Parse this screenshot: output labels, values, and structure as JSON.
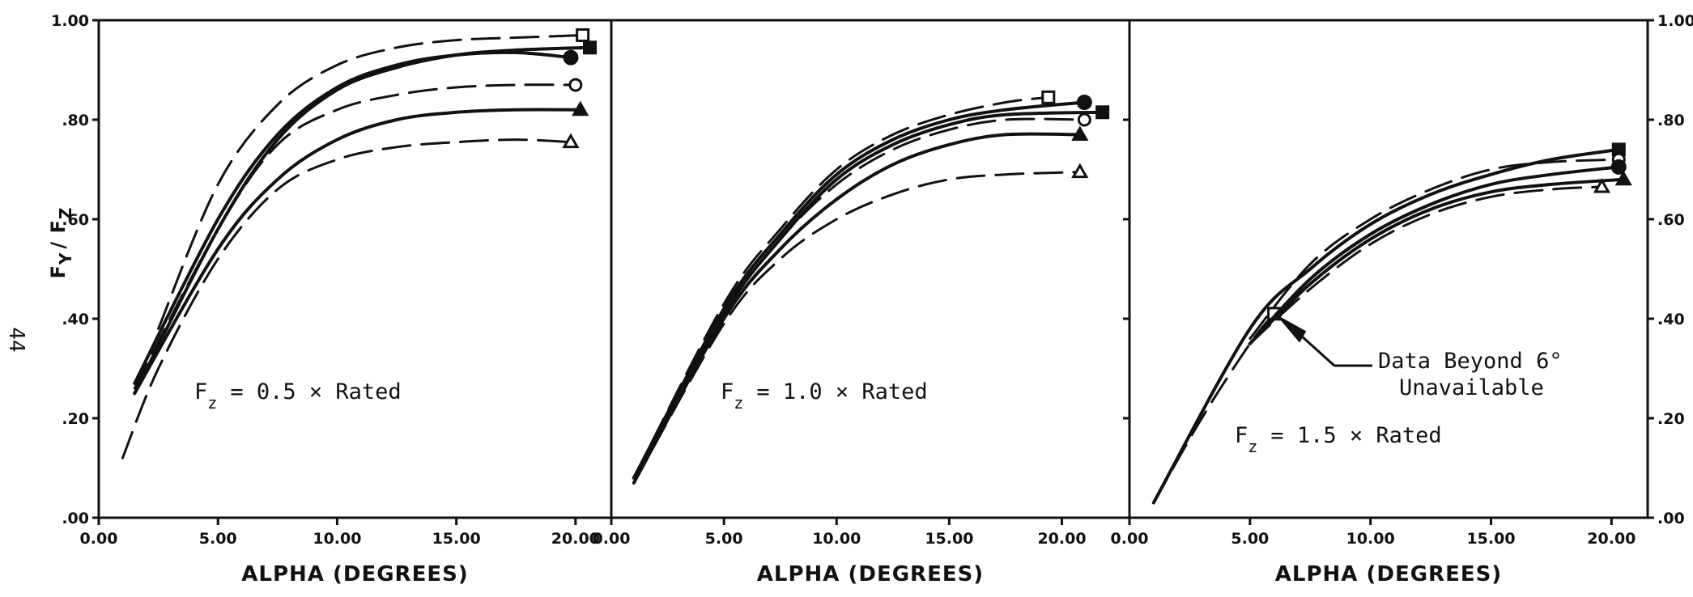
{
  "page_number": "44",
  "y_axis_title": "F",
  "y_axis_title_sub_y": "Y",
  "y_axis_title_sep": "/ F",
  "y_axis_title_sub_z": "Z",
  "chart_data": [
    {
      "type": "line",
      "panel_label": {
        "main": "F",
        "sub": "z",
        "rest": "= 0.5 × Rated"
      },
      "xlabel": "ALPHA (DEGREES)",
      "x_tick_labels": [
        "0.00",
        "5.00",
        "10.00",
        "15.00",
        "20.00"
      ],
      "y_tick_labels": [
        ".00",
        ".20",
        ".40",
        ".60",
        ".80",
        "1.00"
      ],
      "xlim": [
        0,
        21.5
      ],
      "ylim": [
        0,
        1.0
      ],
      "series": [
        {
          "marker": "square-open",
          "dashed": true,
          "x": [
            2.5,
            5,
            7.5,
            10,
            12.5,
            15,
            17.5,
            20.3
          ],
          "y": [
            0.38,
            0.67,
            0.83,
            0.91,
            0.945,
            0.96,
            0.965,
            0.97
          ]
        },
        {
          "marker": "square-filled",
          "dashed": false,
          "x": [
            1.5,
            5,
            7.5,
            10,
            12.5,
            15,
            17.5,
            20.6
          ],
          "y": [
            0.25,
            0.58,
            0.76,
            0.86,
            0.905,
            0.93,
            0.94,
            0.945
          ]
        },
        {
          "marker": "circle-filled",
          "dashed": false,
          "x": [
            1.5,
            5,
            7.5,
            10,
            12.5,
            15,
            17.5,
            19.8
          ],
          "y": [
            0.27,
            0.6,
            0.77,
            0.865,
            0.91,
            0.93,
            0.935,
            0.925
          ]
        },
        {
          "marker": "circle-open",
          "dashed": true,
          "x": [
            1.5,
            5,
            7.5,
            10,
            12.5,
            15,
            17.5,
            20.0
          ],
          "y": [
            0.26,
            0.58,
            0.75,
            0.82,
            0.85,
            0.865,
            0.87,
            0.87
          ]
        },
        {
          "marker": "triangle-filled",
          "dashed": false,
          "x": [
            1.5,
            5,
            7.5,
            10,
            12.5,
            15,
            17.5,
            20.2
          ],
          "y": [
            0.25,
            0.54,
            0.68,
            0.76,
            0.8,
            0.815,
            0.82,
            0.82
          ]
        },
        {
          "marker": "triangle-open",
          "dashed": true,
          "x": [
            1.0,
            2.5,
            5,
            7.5,
            10,
            12.5,
            15,
            17.5,
            19.8
          ],
          "y": [
            0.12,
            0.3,
            0.52,
            0.66,
            0.72,
            0.745,
            0.755,
            0.76,
            0.755
          ]
        }
      ]
    },
    {
      "type": "line",
      "panel_label": {
        "main": "F",
        "sub": "z",
        "rest": "= 1.0 × Rated"
      },
      "xlabel": "ALPHA (DEGREES)",
      "x_tick_labels": [
        "0.00",
        "5.00",
        "10.00",
        "15.00",
        "20.00"
      ],
      "y_tick_labels": [],
      "xlim": [
        0,
        23
      ],
      "ylim": [
        0,
        1.0
      ],
      "series": [
        {
          "marker": "square-open",
          "dashed": true,
          "x": [
            1.0,
            5,
            7.5,
            10,
            12.5,
            15,
            17.5,
            19.4
          ],
          "y": [
            0.08,
            0.43,
            0.58,
            0.7,
            0.77,
            0.81,
            0.835,
            0.845
          ]
        },
        {
          "marker": "circle-filled",
          "dashed": false,
          "x": [
            1.0,
            5,
            7.5,
            10,
            12.5,
            15,
            17.5,
            21.0
          ],
          "y": [
            0.08,
            0.42,
            0.57,
            0.69,
            0.76,
            0.8,
            0.82,
            0.835
          ]
        },
        {
          "marker": "square-filled",
          "dashed": false,
          "x": [
            1.0,
            5,
            7.5,
            10,
            12.5,
            15,
            17.5,
            21.8
          ],
          "y": [
            0.08,
            0.41,
            0.56,
            0.68,
            0.75,
            0.79,
            0.81,
            0.815
          ]
        },
        {
          "marker": "circle-open",
          "dashed": true,
          "x": [
            1.0,
            5,
            7.5,
            10,
            12.5,
            15,
            17.5,
            21.0
          ],
          "y": [
            0.08,
            0.41,
            0.56,
            0.67,
            0.74,
            0.78,
            0.8,
            0.8
          ]
        },
        {
          "marker": "triangle-filled",
          "dashed": false,
          "x": [
            1.0,
            5,
            7.5,
            10,
            12.5,
            15,
            17.5,
            20.8
          ],
          "y": [
            0.07,
            0.4,
            0.54,
            0.64,
            0.71,
            0.75,
            0.77,
            0.77
          ]
        },
        {
          "marker": "triangle-open",
          "dashed": true,
          "x": [
            1.0,
            5,
            7.5,
            10,
            12.5,
            15,
            17.5,
            20.8
          ],
          "y": [
            0.07,
            0.39,
            0.52,
            0.6,
            0.65,
            0.68,
            0.69,
            0.695
          ]
        }
      ]
    },
    {
      "type": "line",
      "panel_label": {
        "main": "F",
        "sub": "z",
        "rest": "= 1.5 × Rated"
      },
      "annotation": {
        "line1": "Data Beyond 6°",
        "line2": "Unavailable"
      },
      "xlabel": "ALPHA (DEGREES)",
      "x_tick_labels": [
        "0.00",
        "5.00",
        "10.00",
        "15.00",
        "20.00"
      ],
      "y_tick_labels": [
        ".00",
        ".20",
        ".40",
        ".60",
        ".80",
        "1.00"
      ],
      "xlim": [
        0,
        21.5
      ],
      "ylim": [
        0,
        1.0
      ],
      "series": [
        {
          "marker": "square-open",
          "dashed": true,
          "x": [
            1.0,
            3,
            5,
            6.0
          ],
          "y": [
            0.03,
            0.2,
            0.35,
            0.41
          ]
        },
        {
          "marker": "square-filled",
          "dashed": false,
          "x": [
            1.0,
            5,
            7.5,
            10,
            12.5,
            15,
            17.5,
            20.3
          ],
          "y": [
            0.03,
            0.38,
            0.5,
            0.59,
            0.65,
            0.69,
            0.72,
            0.74
          ]
        },
        {
          "marker": "circle-open",
          "dashed": true,
          "x": [
            5,
            7.5,
            10,
            12.5,
            15,
            17.5,
            20.3
          ],
          "y": [
            0.36,
            0.51,
            0.6,
            0.66,
            0.7,
            0.715,
            0.72
          ]
        },
        {
          "marker": "circle-filled",
          "dashed": false,
          "x": [
            5,
            7.5,
            10,
            12.5,
            15,
            17.5,
            20.3
          ],
          "y": [
            0.35,
            0.48,
            0.57,
            0.63,
            0.67,
            0.69,
            0.705
          ]
        },
        {
          "marker": "triangle-filled",
          "dashed": false,
          "x": [
            5,
            7.5,
            10,
            12.5,
            15,
            17.5,
            20.5
          ],
          "y": [
            0.35,
            0.47,
            0.56,
            0.62,
            0.655,
            0.67,
            0.68
          ]
        },
        {
          "marker": "triangle-open",
          "dashed": true,
          "x": [
            5,
            7.5,
            10,
            12.5,
            15,
            17.5,
            19.6
          ],
          "y": [
            0.35,
            0.46,
            0.55,
            0.61,
            0.645,
            0.66,
            0.665
          ]
        }
      ]
    }
  ]
}
